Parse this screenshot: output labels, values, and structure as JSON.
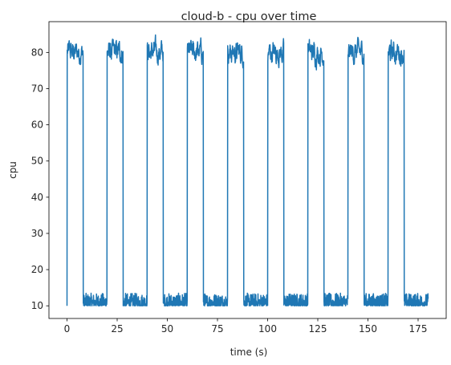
{
  "chart_data": {
    "type": "line",
    "title": "cloud-b - cpu over time",
    "xlabel": "time (s)",
    "ylabel": "cpu",
    "xlim": [
      -9,
      189
    ],
    "ylim": [
      6.5,
      88.5
    ],
    "xticks": [
      0,
      25,
      50,
      75,
      100,
      125,
      150,
      175
    ],
    "yticks": [
      10,
      20,
      30,
      40,
      50,
      60,
      70,
      80
    ],
    "grid": false,
    "legend": "none",
    "series": [
      {
        "color": "#1f77b4",
        "step_seconds": 0.1,
        "high_periods": [
          [
            0,
            8
          ],
          [
            20,
            28
          ],
          [
            40,
            48
          ],
          [
            60,
            68
          ],
          [
            80,
            88
          ],
          [
            100,
            108
          ],
          [
            120,
            128
          ],
          [
            140,
            148
          ],
          [
            160,
            168
          ]
        ],
        "high_level": 80,
        "high_jitter_min": 75,
        "high_jitter_max": 85,
        "low_level": 10,
        "low_jitter_min": 10,
        "low_jitter_max": 13.5,
        "x_end": 180
      }
    ]
  }
}
